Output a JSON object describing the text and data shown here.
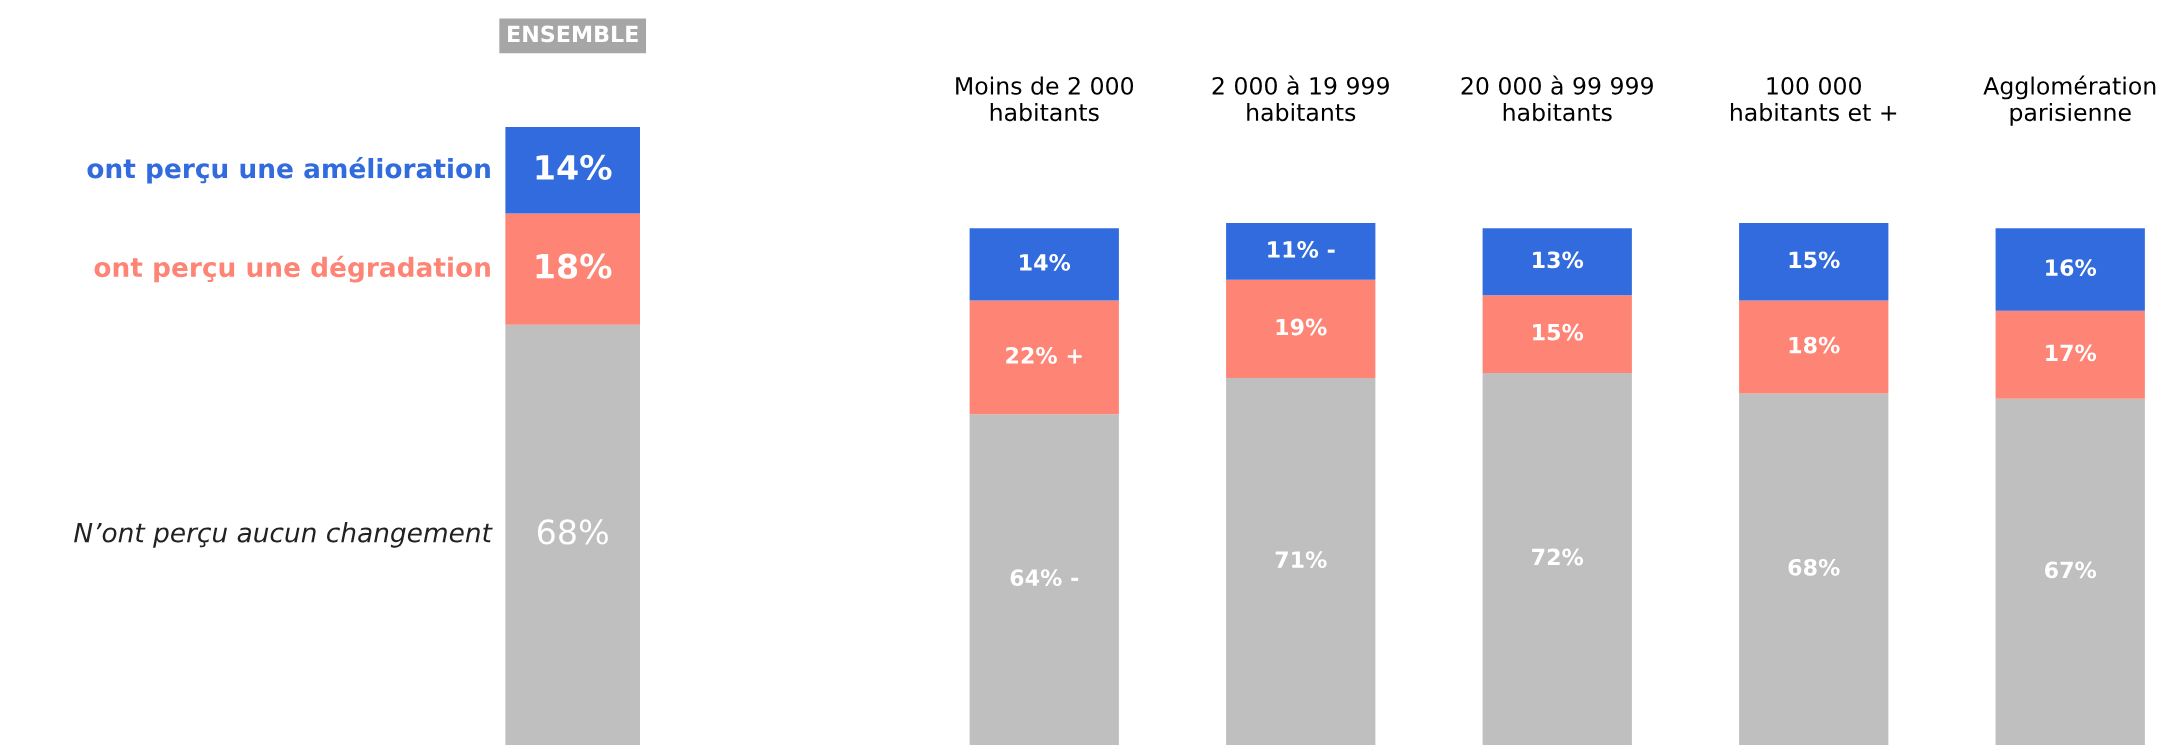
{
  "chart_data": [
    {
      "type": "bar",
      "title": "ENSEMBLE",
      "stacked": true,
      "legend": "left",
      "categories": [
        null
      ],
      "ylim": [
        0,
        100
      ],
      "series": [
        {
          "name": "N’ont perçu aucun changement",
          "color": "#bfbfbf",
          "values": [
            68
          ],
          "value_labels": [
            "68%"
          ]
        },
        {
          "name": "ont perçu une dégradation",
          "color": "#fe8475",
          "values": [
            18
          ],
          "value_labels": [
            "18%"
          ]
        },
        {
          "name": "ont perçu une amélioration",
          "color": "#316bdd",
          "values": [
            14
          ],
          "value_labels": [
            "14%"
          ]
        }
      ]
    },
    {
      "type": "bar",
      "stacked": true,
      "ylim": [
        0,
        101
      ],
      "categories": [
        "Moins de 2 000\nhabitants",
        "2 000 à 19 999\nhabitants",
        "20 000 à 99 999\nhabitants",
        "100 000\nhabitants et +",
        "Agglomération\nparisienne"
      ],
      "series": [
        {
          "color": "#bfbfbf",
          "values": [
            64,
            71,
            72,
            68,
            67
          ],
          "value_labels": [
            "64% -",
            "71%",
            "72%",
            "68%",
            "67%"
          ]
        },
        {
          "color": "#fe8475",
          "values": [
            22,
            19,
            15,
            18,
            17
          ],
          "value_labels": [
            "22% +",
            "19%",
            "15%",
            "18%",
            "17%"
          ]
        },
        {
          "color": "#316bdd",
          "values": [
            14,
            11,
            13,
            15,
            16
          ],
          "value_labels": [
            "14%",
            "11% -",
            "13%",
            "15%",
            "16%"
          ]
        }
      ]
    }
  ]
}
